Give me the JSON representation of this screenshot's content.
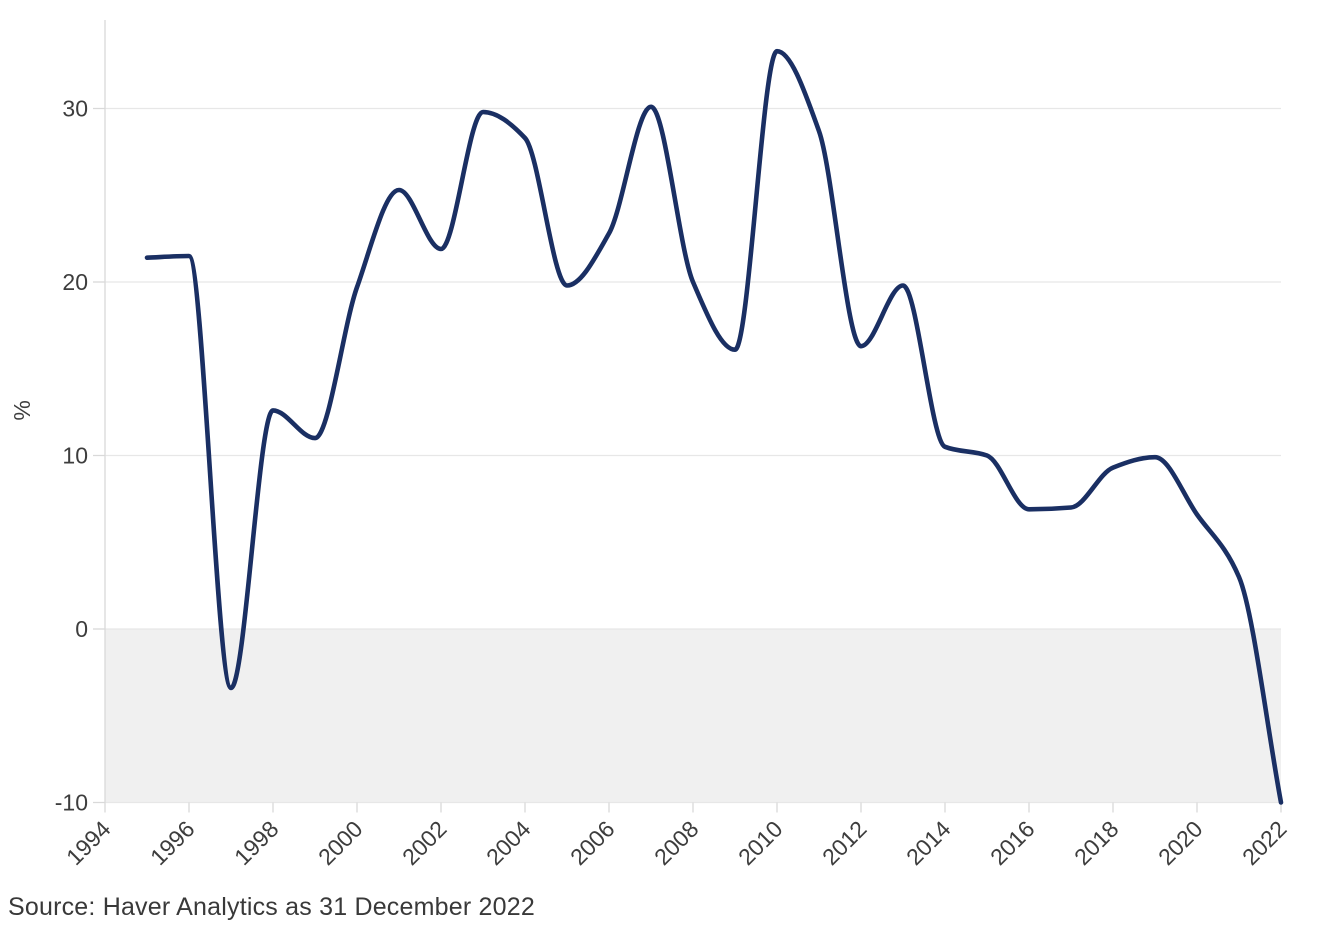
{
  "source": {
    "text": "Source: Haver Analytics as 31 December 2022"
  },
  "colors": {
    "line": "#1a2f63",
    "gridline": "#e7e7e7",
    "axis": "#d9d9d9",
    "tick_text": "#3d3d3d",
    "negative_band": "#f0f0f0",
    "background": "#ffffff"
  },
  "chart_data": {
    "type": "line",
    "title": "",
    "xlabel": "",
    "ylabel": "%",
    "x": [
      1995,
      1996,
      1997,
      1998,
      1999,
      2000,
      2001,
      2002,
      2003,
      2004,
      2005,
      2006,
      2007,
      2008,
      2009,
      2010,
      2011,
      2012,
      2013,
      2014,
      2015,
      2016,
      2017,
      2018,
      2019,
      2020,
      2021,
      2022
    ],
    "values": [
      21.4,
      21.5,
      -3.4,
      12.6,
      11.0,
      19.7,
      25.3,
      21.9,
      29.8,
      28.3,
      19.8,
      22.8,
      30.1,
      20.0,
      16.1,
      33.3,
      28.7,
      16.3,
      19.8,
      10.5,
      10.0,
      6.9,
      7.0,
      9.3,
      9.9,
      6.6,
      3.0,
      -10.0
    ],
    "x_tick_labels": [
      "1994",
      "1996",
      "1998",
      "2000",
      "2002",
      "2004",
      "2006",
      "2008",
      "2010",
      "2012",
      "2014",
      "2016",
      "2018",
      "2020",
      "2022"
    ],
    "y_ticks": [
      30,
      20,
      10,
      0,
      -10
    ],
    "xlim": [
      1994,
      2022
    ],
    "ylim": [
      -10,
      35
    ],
    "grid": true,
    "legend": false,
    "smooth": true,
    "line_color": "#1a2f63",
    "shaded_region": {
      "from": 0,
      "to": -10,
      "color": "#f0f0f0"
    }
  }
}
